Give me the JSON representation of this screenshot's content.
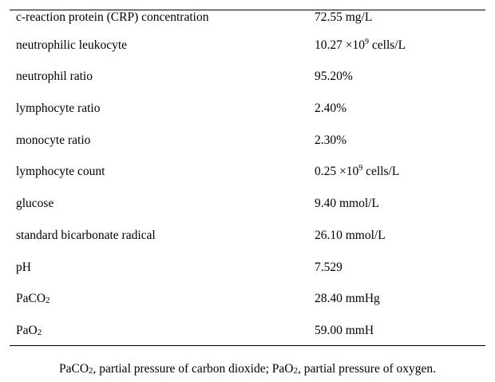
{
  "table": {
    "rows": [
      {
        "name": "c-reaction protein (CRP) concentration",
        "value": "72.55 mg/L"
      },
      {
        "name": "neutrophilic leukocyte",
        "value_prefix": "10.27 ×10",
        "value_sup": "9",
        "value_suffix": " cells/L"
      },
      {
        "name": "neutrophil ratio",
        "value": "95.20%"
      },
      {
        "name": "lymphocyte ratio",
        "value": "2.40%"
      },
      {
        "name": "monocyte ratio",
        "value": "2.30%"
      },
      {
        "name": "lymphocyte count",
        "value_prefix": "0.25 ×10",
        "value_sup": "9",
        "value_suffix": " cells/L"
      },
      {
        "name": "glucose",
        "value": "9.40 mmol/L"
      },
      {
        "name": "standard bicarbonate radical",
        "value": "26.10 mmol/L"
      },
      {
        "name": "pH",
        "value": "7.529"
      },
      {
        "name_prefix": "PaCO",
        "name_sub": "2",
        "value": "28.40 mmHg"
      },
      {
        "name_prefix": "PaO",
        "name_sub": "2",
        "value": "59.00 mmH"
      }
    ]
  },
  "footnote": {
    "part1": "PaCO",
    "sub1": "2",
    "part2": ", partial pressure of carbon dioxide; PaO",
    "sub2": "2",
    "part3": ", partial pressure of oxygen."
  }
}
